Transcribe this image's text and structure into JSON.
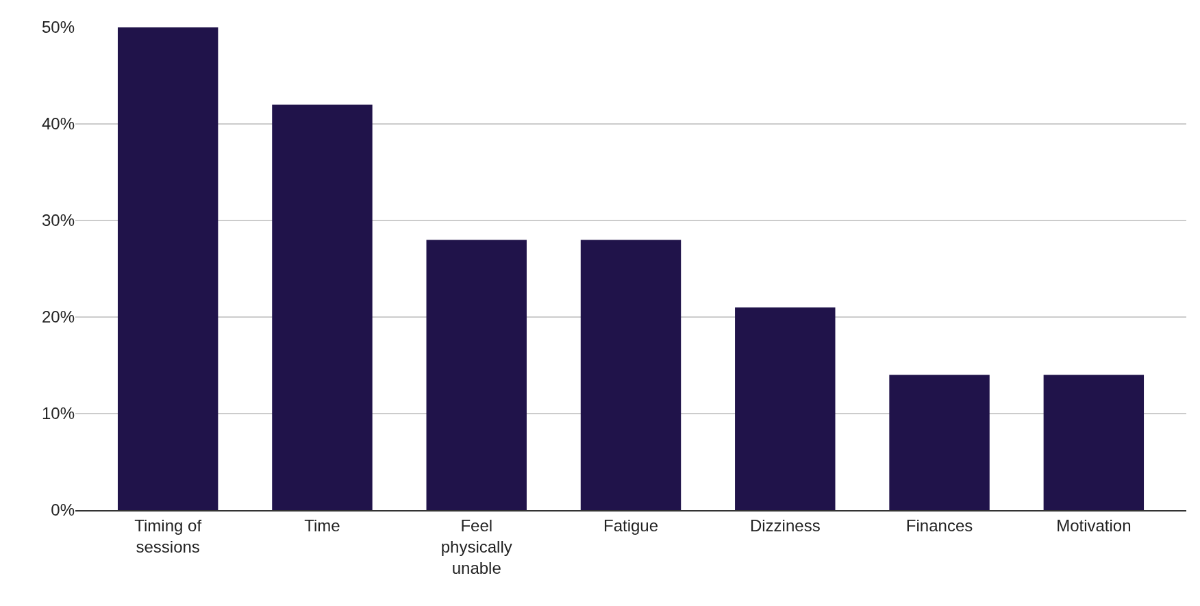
{
  "chart_data": {
    "type": "bar",
    "categories": [
      "Timing of sessions",
      "Time",
      "Feel physically unable",
      "Fatigue",
      "Dizziness",
      "Finances",
      "Motivation"
    ],
    "values": [
      50,
      42,
      28,
      28,
      21,
      14,
      14
    ],
    "color": "#20134a",
    "ylim": [
      0,
      50
    ],
    "yticks": [
      {
        "value": 0,
        "label": "0%"
      },
      {
        "value": 10,
        "label": "10%"
      },
      {
        "value": 20,
        "label": "20%"
      },
      {
        "value": 30,
        "label": "30%"
      },
      {
        "value": 40,
        "label": "40%"
      },
      {
        "value": 50,
        "label": "50%"
      }
    ],
    "grid": "y",
    "legend": false
  }
}
